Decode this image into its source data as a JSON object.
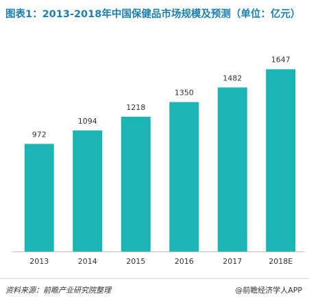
{
  "title": "图表1：2013-2018年中国保健品市场规模及预测（单位：亿元）",
  "source": "资料来源：前瞻产业研究院整理",
  "brand": "@前瞻经济学人APP",
  "chart_data": {
    "type": "bar",
    "title": "图表1：2013-2018年中国保健品市场规模及预测（单位：亿元）",
    "categories": [
      "2013",
      "2014",
      "2015",
      "2016",
      "2017",
      "2018E"
    ],
    "values": [
      972,
      1094,
      1218,
      1350,
      1482,
      1647
    ],
    "xlabel": "",
    "ylabel": "",
    "ylim": [
      0,
      1900
    ],
    "grid": false,
    "bar_color": "#1bb5b3"
  }
}
